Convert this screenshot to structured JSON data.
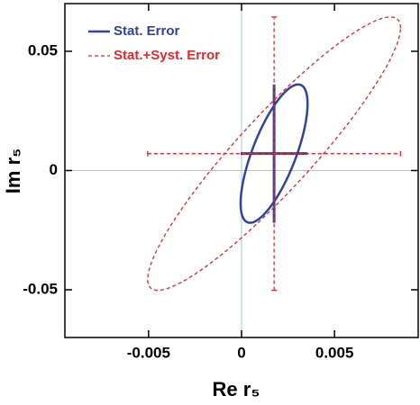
{
  "chart_data": {
    "type": "error_ellipse",
    "xlabel": "Re r₅",
    "ylabel": "Im r₅",
    "xlim": [
      -0.0095,
      0.0095
    ],
    "ylim": [
      -0.07,
      0.07
    ],
    "xticks": [
      -0.005,
      0,
      0.005
    ],
    "yticks": [
      -0.05,
      0,
      0.05
    ],
    "zero_lines": true,
    "legend": "upper left",
    "series": [
      {
        "name": "Stat. Error",
        "color": "#2f43a0",
        "style": "solid",
        "x": 0.00175,
        "y": 0.0071,
        "xerr": 0.0018,
        "yerr": 0.029,
        "rho": 0.72
      },
      {
        "name": "Stat.+Syst. Error",
        "color": "#e8262b",
        "style": "dashed",
        "x": 0.00175,
        "y": 0.0071,
        "xerr": 0.0068,
        "yerr": 0.0573,
        "rho": 0.92
      }
    ]
  }
}
